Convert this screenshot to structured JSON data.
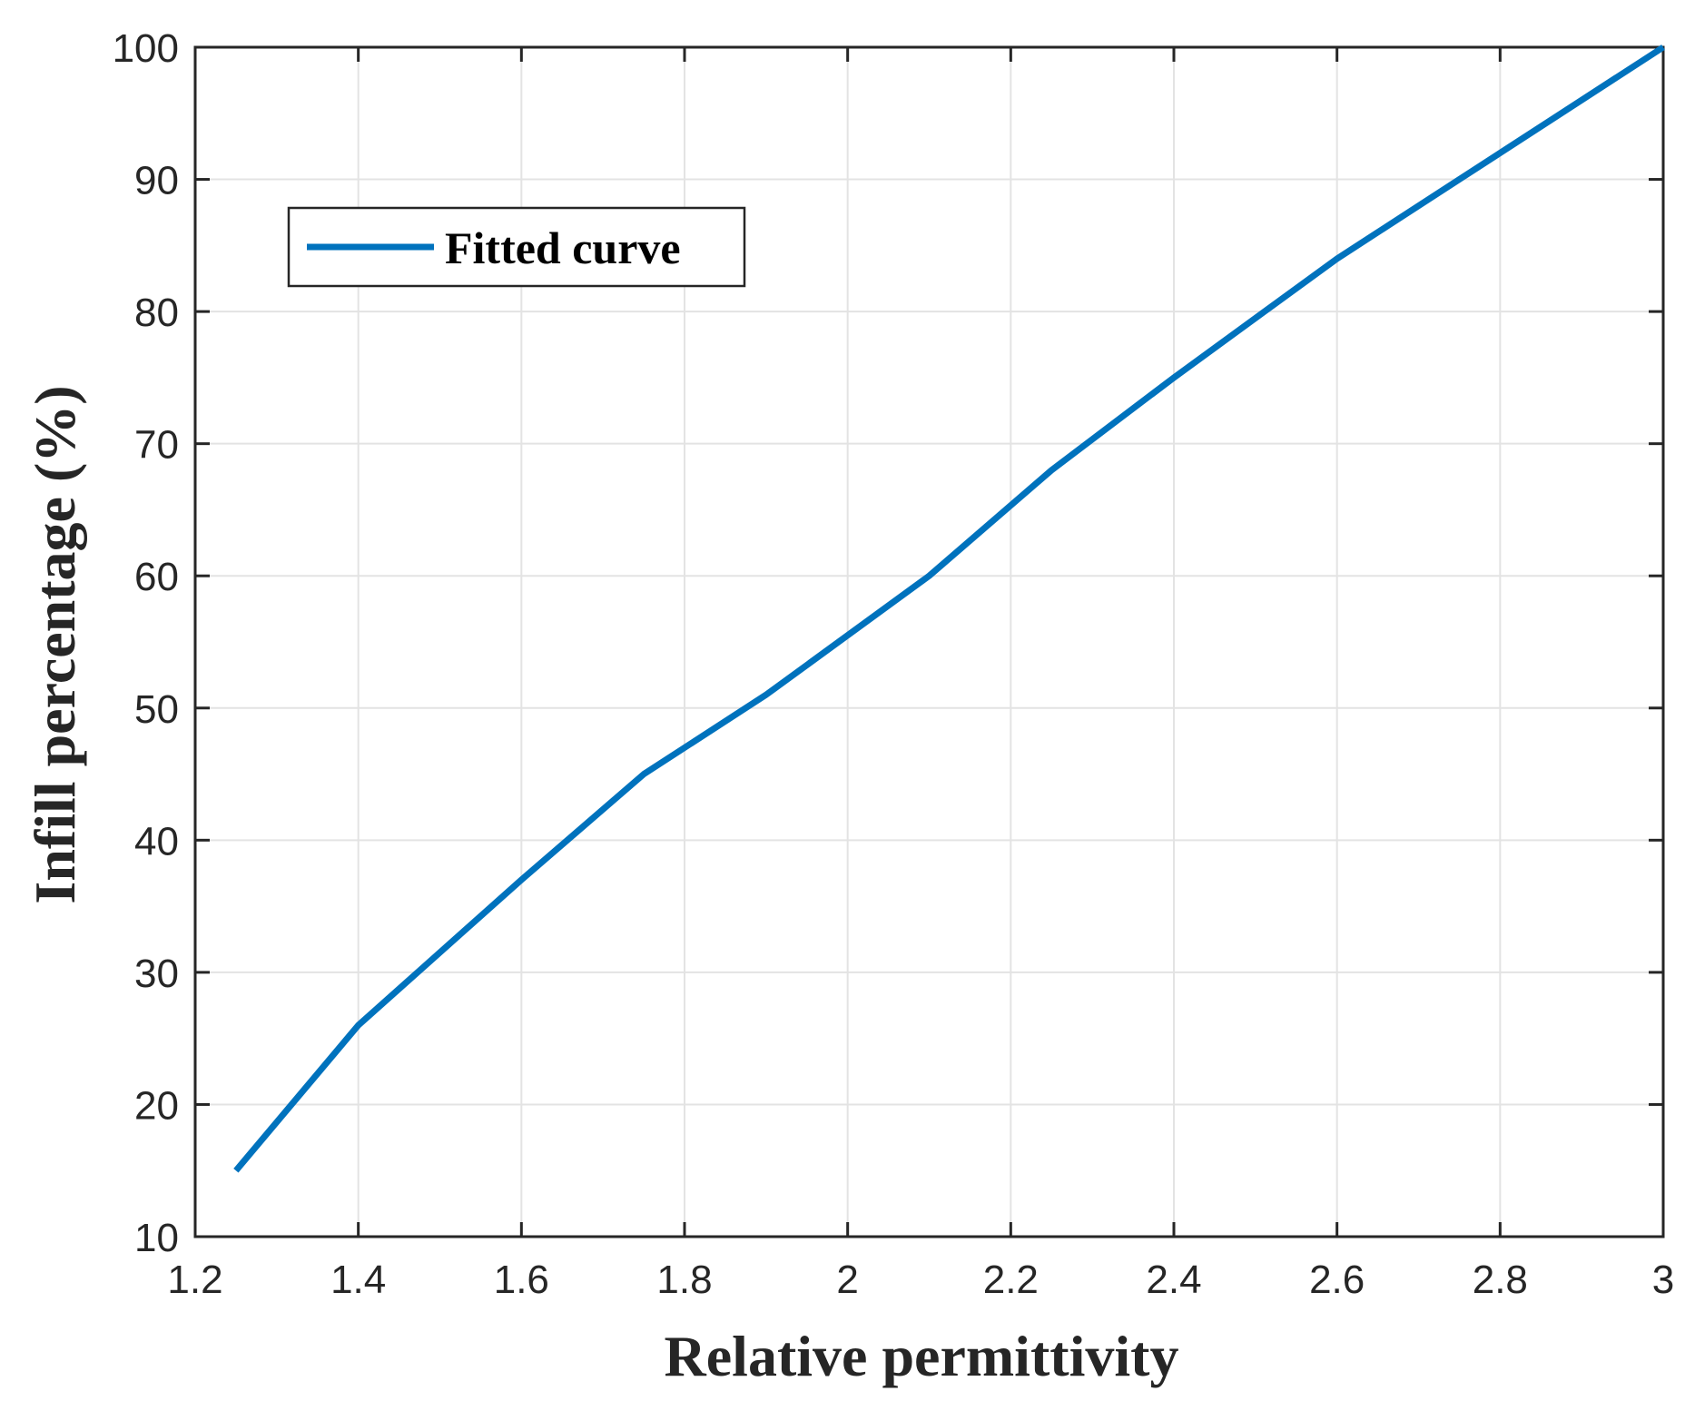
{
  "chart_data": {
    "type": "line",
    "title": "",
    "xlabel": "Relative permittivity",
    "ylabel": "Infill percentage (%)",
    "xlim": [
      1.2,
      3
    ],
    "ylim": [
      10,
      100
    ],
    "xticks": [
      "1.2",
      "1.4",
      "1.6",
      "1.8",
      "2",
      "2.2",
      "2.4",
      "2.6",
      "2.8",
      "3"
    ],
    "yticks": [
      "10",
      "20",
      "30",
      "40",
      "50",
      "60",
      "70",
      "80",
      "90",
      "100"
    ],
    "grid": true,
    "legend": {
      "position": "top-left"
    },
    "series": [
      {
        "name": "Fitted curve",
        "color": "#0072BD",
        "x": [
          1.25,
          1.4,
          1.6,
          1.75,
          1.9,
          2.1,
          2.25,
          2.4,
          2.6,
          2.75,
          2.9,
          3.0
        ],
        "y": [
          15,
          26,
          37,
          45,
          51,
          60,
          68,
          75,
          84,
          90,
          96,
          100
        ]
      }
    ]
  }
}
